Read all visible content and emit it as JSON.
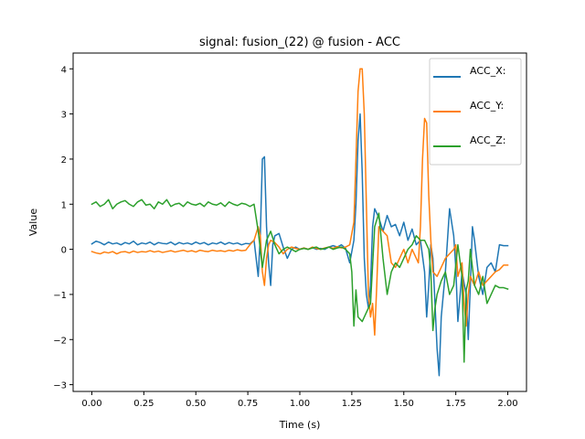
{
  "chart_data": {
    "type": "line",
    "title": "signal: fusion_(22) @ fusion - ACC",
    "xlabel": "Time (s)",
    "ylabel": "Value",
    "xlim": [
      -0.09,
      2.09
    ],
    "ylim": [
      -3.15,
      4.35
    ],
    "xticks": [
      0.0,
      0.25,
      0.5,
      0.75,
      1.0,
      1.25,
      1.5,
      1.75,
      2.0
    ],
    "xtick_labels": [
      "0.00",
      "0.25",
      "0.50",
      "0.75",
      "1.00",
      "1.25",
      "1.50",
      "1.75",
      "2.00"
    ],
    "yticks": [
      -3,
      -2,
      -1,
      0,
      1,
      2,
      3,
      4
    ],
    "ytick_labels": [
      "−3",
      "−2",
      "−1",
      "0",
      "1",
      "2",
      "3",
      "4"
    ],
    "grid": false,
    "legend_position": "top-right",
    "series": [
      {
        "name": "ACC_X:",
        "color": "#1f77b4",
        "x": [
          0.0,
          0.02,
          0.04,
          0.06,
          0.08,
          0.1,
          0.12,
          0.14,
          0.16,
          0.18,
          0.2,
          0.22,
          0.24,
          0.26,
          0.28,
          0.3,
          0.32,
          0.34,
          0.36,
          0.38,
          0.4,
          0.42,
          0.44,
          0.46,
          0.48,
          0.5,
          0.52,
          0.54,
          0.56,
          0.58,
          0.6,
          0.62,
          0.64,
          0.66,
          0.68,
          0.7,
          0.72,
          0.74,
          0.76,
          0.78,
          0.8,
          0.81,
          0.82,
          0.83,
          0.84,
          0.85,
          0.86,
          0.87,
          0.88,
          0.9,
          0.92,
          0.94,
          0.96,
          0.98,
          1.0,
          1.02,
          1.04,
          1.06,
          1.08,
          1.1,
          1.12,
          1.14,
          1.16,
          1.18,
          1.2,
          1.22,
          1.24,
          1.26,
          1.27,
          1.28,
          1.29,
          1.3,
          1.31,
          1.32,
          1.33,
          1.34,
          1.35,
          1.36,
          1.38,
          1.4,
          1.42,
          1.44,
          1.46,
          1.48,
          1.5,
          1.52,
          1.54,
          1.56,
          1.58,
          1.6,
          1.61,
          1.62,
          1.63,
          1.64,
          1.65,
          1.66,
          1.67,
          1.68,
          1.7,
          1.72,
          1.73,
          1.74,
          1.75,
          1.76,
          1.78,
          1.8,
          1.81,
          1.82,
          1.83,
          1.84,
          1.86,
          1.88,
          1.9,
          1.92,
          1.94,
          1.96,
          1.98,
          2.0
        ],
        "y": [
          0.12,
          0.18,
          0.15,
          0.1,
          0.16,
          0.12,
          0.14,
          0.1,
          0.15,
          0.12,
          0.18,
          0.1,
          0.14,
          0.12,
          0.16,
          0.1,
          0.15,
          0.13,
          0.12,
          0.16,
          0.1,
          0.15,
          0.12,
          0.14,
          0.11,
          0.16,
          0.12,
          0.15,
          0.1,
          0.14,
          0.12,
          0.16,
          0.11,
          0.15,
          0.12,
          0.14,
          0.1,
          0.13,
          0.12,
          0.2,
          -0.6,
          0.3,
          2.0,
          2.05,
          0.5,
          -0.3,
          -0.8,
          0.1,
          0.3,
          0.35,
          0.05,
          -0.2,
          0.0,
          0.05,
          0.0,
          0.03,
          0.0,
          0.04,
          0.0,
          0.02,
          0.0,
          0.05,
          0.08,
          0.05,
          0.1,
          0.02,
          -0.3,
          0.2,
          1.0,
          2.4,
          3.0,
          1.7,
          -0.2,
          -1.0,
          -1.3,
          -0.8,
          0.5,
          0.9,
          0.7,
          0.4,
          0.75,
          0.5,
          0.55,
          0.3,
          0.6,
          0.2,
          0.45,
          0.1,
          0.2,
          -0.5,
          -1.5,
          -0.8,
          0.1,
          -0.2,
          -1.2,
          -2.2,
          -2.8,
          -1.5,
          -0.5,
          0.9,
          0.6,
          0.3,
          -0.4,
          -1.6,
          -0.5,
          -1.0,
          -2.0,
          -0.8,
          0.5,
          0.2,
          -0.6,
          -1.0,
          -0.4,
          -0.3,
          -0.5,
          0.1,
          0.08,
          0.08
        ]
      },
      {
        "name": "ACC_Y:",
        "color": "#ff7f0e",
        "x": [
          0.0,
          0.02,
          0.04,
          0.06,
          0.08,
          0.1,
          0.12,
          0.14,
          0.16,
          0.18,
          0.2,
          0.22,
          0.24,
          0.26,
          0.28,
          0.3,
          0.32,
          0.34,
          0.36,
          0.38,
          0.4,
          0.42,
          0.44,
          0.46,
          0.48,
          0.5,
          0.52,
          0.54,
          0.56,
          0.58,
          0.6,
          0.62,
          0.64,
          0.66,
          0.68,
          0.7,
          0.72,
          0.74,
          0.76,
          0.78,
          0.8,
          0.81,
          0.82,
          0.83,
          0.84,
          0.85,
          0.86,
          0.88,
          0.9,
          0.92,
          0.94,
          0.96,
          0.98,
          1.0,
          1.02,
          1.04,
          1.06,
          1.08,
          1.1,
          1.12,
          1.14,
          1.16,
          1.18,
          1.2,
          1.22,
          1.24,
          1.26,
          1.27,
          1.28,
          1.29,
          1.3,
          1.31,
          1.32,
          1.33,
          1.34,
          1.35,
          1.36,
          1.37,
          1.38,
          1.4,
          1.42,
          1.44,
          1.46,
          1.48,
          1.5,
          1.52,
          1.54,
          1.56,
          1.57,
          1.58,
          1.59,
          1.6,
          1.61,
          1.62,
          1.63,
          1.64,
          1.66,
          1.68,
          1.7,
          1.72,
          1.74,
          1.75,
          1.76,
          1.78,
          1.79,
          1.8,
          1.81,
          1.82,
          1.84,
          1.86,
          1.88,
          1.9,
          1.92,
          1.94,
          1.96,
          1.98,
          2.0
        ],
        "y": [
          -0.05,
          -0.08,
          -0.1,
          -0.06,
          -0.08,
          -0.05,
          -0.1,
          -0.06,
          -0.05,
          -0.08,
          -0.04,
          -0.07,
          -0.05,
          -0.06,
          -0.03,
          -0.06,
          -0.04,
          -0.07,
          -0.05,
          -0.03,
          -0.06,
          -0.04,
          -0.02,
          -0.05,
          -0.03,
          -0.06,
          -0.02,
          -0.04,
          -0.05,
          -0.02,
          -0.04,
          -0.03,
          -0.05,
          -0.02,
          -0.04,
          -0.01,
          -0.03,
          -0.02,
          0.1,
          0.2,
          0.5,
          0.3,
          -0.5,
          -0.8,
          -0.2,
          0.1,
          0.2,
          0.15,
          0.05,
          -0.1,
          0.0,
          0.05,
          0.02,
          0.0,
          0.03,
          0.0,
          0.05,
          0.02,
          0.0,
          0.03,
          0.05,
          0.02,
          0.06,
          0.03,
          0.05,
          0.1,
          0.6,
          2.0,
          3.5,
          4.0,
          4.0,
          3.0,
          1.0,
          -1.0,
          -1.5,
          -1.2,
          -1.9,
          -0.8,
          0.5,
          0.4,
          0.3,
          -0.3,
          -0.4,
          -0.2,
          0.0,
          -0.3,
          0.0,
          -0.2,
          -0.3,
          0.5,
          2.0,
          2.9,
          2.8,
          1.2,
          0.2,
          -0.5,
          -0.6,
          -0.4,
          -0.2,
          -0.1,
          0.0,
          0.1,
          -0.6,
          -0.3,
          -1.2,
          -1.7,
          -1.0,
          -0.6,
          -0.8,
          -0.5,
          -0.8,
          -0.7,
          -0.6,
          -0.5,
          -0.45,
          -0.35,
          -0.35
        ]
      },
      {
        "name": "ACC_Z:",
        "color": "#2ca02c",
        "x": [
          0.0,
          0.02,
          0.04,
          0.06,
          0.08,
          0.1,
          0.12,
          0.14,
          0.16,
          0.18,
          0.2,
          0.22,
          0.24,
          0.26,
          0.28,
          0.3,
          0.32,
          0.34,
          0.36,
          0.38,
          0.4,
          0.42,
          0.44,
          0.46,
          0.48,
          0.5,
          0.52,
          0.54,
          0.56,
          0.58,
          0.6,
          0.62,
          0.64,
          0.66,
          0.68,
          0.7,
          0.72,
          0.74,
          0.76,
          0.78,
          0.8,
          0.82,
          0.84,
          0.86,
          0.88,
          0.9,
          0.92,
          0.94,
          0.96,
          0.98,
          1.0,
          1.02,
          1.04,
          1.06,
          1.08,
          1.1,
          1.12,
          1.14,
          1.16,
          1.18,
          1.2,
          1.22,
          1.24,
          1.25,
          1.26,
          1.27,
          1.28,
          1.3,
          1.32,
          1.34,
          1.36,
          1.38,
          1.4,
          1.42,
          1.44,
          1.46,
          1.48,
          1.5,
          1.52,
          1.54,
          1.56,
          1.58,
          1.6,
          1.62,
          1.63,
          1.64,
          1.65,
          1.66,
          1.68,
          1.7,
          1.72,
          1.74,
          1.76,
          1.78,
          1.79,
          1.8,
          1.81,
          1.82,
          1.84,
          1.86,
          1.88,
          1.9,
          1.92,
          1.94,
          1.96,
          1.98,
          2.0
        ],
        "y": [
          1.0,
          1.05,
          0.95,
          1.0,
          1.1,
          0.9,
          1.0,
          1.05,
          1.08,
          1.0,
          0.95,
          1.05,
          1.1,
          0.98,
          1.0,
          0.9,
          1.05,
          1.0,
          1.1,
          0.95,
          1.0,
          1.02,
          0.95,
          1.05,
          1.0,
          0.98,
          1.02,
          0.95,
          1.05,
          1.0,
          0.98,
          1.03,
          0.95,
          1.05,
          1.0,
          0.97,
          1.02,
          1.0,
          0.95,
          1.0,
          0.4,
          -0.4,
          0.2,
          0.4,
          0.1,
          -0.1,
          0.0,
          0.05,
          0.0,
          -0.05,
          0.0,
          0.02,
          0.0,
          0.03,
          0.05,
          0.0,
          0.02,
          0.05,
          0.0,
          0.03,
          0.05,
          0.0,
          -0.1,
          -0.5,
          -1.7,
          -0.9,
          -1.5,
          -1.6,
          -1.4,
          -1.2,
          0.5,
          0.8,
          -0.2,
          -1.0,
          -0.5,
          -0.3,
          -0.4,
          -0.2,
          0.0,
          0.1,
          0.3,
          0.2,
          0.2,
          0.0,
          -0.5,
          -1.8,
          -1.3,
          -1.0,
          -0.7,
          -0.5,
          -1.0,
          -0.8,
          0.1,
          -0.6,
          -2.5,
          -0.9,
          -0.7,
          0.0,
          -0.8,
          -1.0,
          -0.6,
          -1.2,
          -1.0,
          -0.8,
          -0.85,
          -0.85,
          -0.88
        ]
      }
    ]
  }
}
